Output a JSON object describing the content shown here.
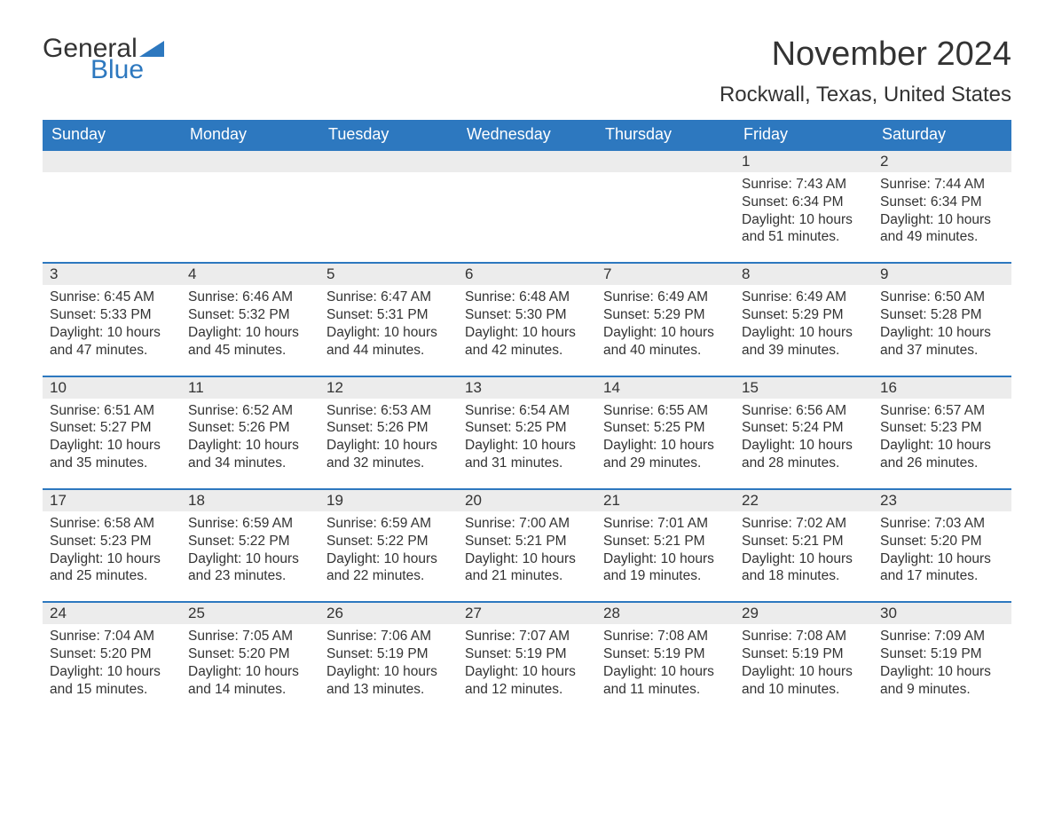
{
  "logo": {
    "text1": "General",
    "text2": "Blue",
    "accent_color": "#2d78bf"
  },
  "title": "November 2024",
  "location": "Rockwall, Texas, United States",
  "colors": {
    "header_bg": "#2d78bf",
    "header_text": "#ffffff",
    "daynum_bg": "#ececec",
    "daynum_border": "#2d78bf",
    "body_bg": "#ffffff",
    "text": "#333333"
  },
  "days_of_week": [
    "Sunday",
    "Monday",
    "Tuesday",
    "Wednesday",
    "Thursday",
    "Friday",
    "Saturday"
  ],
  "weeks": [
    [
      {
        "empty": true
      },
      {
        "empty": true
      },
      {
        "empty": true
      },
      {
        "empty": true
      },
      {
        "empty": true
      },
      {
        "n": "1",
        "sunrise": "Sunrise: 7:43 AM",
        "sunset": "Sunset: 6:34 PM",
        "day1": "Daylight: 10 hours",
        "day2": "and 51 minutes."
      },
      {
        "n": "2",
        "sunrise": "Sunrise: 7:44 AM",
        "sunset": "Sunset: 6:34 PM",
        "day1": "Daylight: 10 hours",
        "day2": "and 49 minutes."
      }
    ],
    [
      {
        "n": "3",
        "sunrise": "Sunrise: 6:45 AM",
        "sunset": "Sunset: 5:33 PM",
        "day1": "Daylight: 10 hours",
        "day2": "and 47 minutes."
      },
      {
        "n": "4",
        "sunrise": "Sunrise: 6:46 AM",
        "sunset": "Sunset: 5:32 PM",
        "day1": "Daylight: 10 hours",
        "day2": "and 45 minutes."
      },
      {
        "n": "5",
        "sunrise": "Sunrise: 6:47 AM",
        "sunset": "Sunset: 5:31 PM",
        "day1": "Daylight: 10 hours",
        "day2": "and 44 minutes."
      },
      {
        "n": "6",
        "sunrise": "Sunrise: 6:48 AM",
        "sunset": "Sunset: 5:30 PM",
        "day1": "Daylight: 10 hours",
        "day2": "and 42 minutes."
      },
      {
        "n": "7",
        "sunrise": "Sunrise: 6:49 AM",
        "sunset": "Sunset: 5:29 PM",
        "day1": "Daylight: 10 hours",
        "day2": "and 40 minutes."
      },
      {
        "n": "8",
        "sunrise": "Sunrise: 6:49 AM",
        "sunset": "Sunset: 5:29 PM",
        "day1": "Daylight: 10 hours",
        "day2": "and 39 minutes."
      },
      {
        "n": "9",
        "sunrise": "Sunrise: 6:50 AM",
        "sunset": "Sunset: 5:28 PM",
        "day1": "Daylight: 10 hours",
        "day2": "and 37 minutes."
      }
    ],
    [
      {
        "n": "10",
        "sunrise": "Sunrise: 6:51 AM",
        "sunset": "Sunset: 5:27 PM",
        "day1": "Daylight: 10 hours",
        "day2": "and 35 minutes."
      },
      {
        "n": "11",
        "sunrise": "Sunrise: 6:52 AM",
        "sunset": "Sunset: 5:26 PM",
        "day1": "Daylight: 10 hours",
        "day2": "and 34 minutes."
      },
      {
        "n": "12",
        "sunrise": "Sunrise: 6:53 AM",
        "sunset": "Sunset: 5:26 PM",
        "day1": "Daylight: 10 hours",
        "day2": "and 32 minutes."
      },
      {
        "n": "13",
        "sunrise": "Sunrise: 6:54 AM",
        "sunset": "Sunset: 5:25 PM",
        "day1": "Daylight: 10 hours",
        "day2": "and 31 minutes."
      },
      {
        "n": "14",
        "sunrise": "Sunrise: 6:55 AM",
        "sunset": "Sunset: 5:25 PM",
        "day1": "Daylight: 10 hours",
        "day2": "and 29 minutes."
      },
      {
        "n": "15",
        "sunrise": "Sunrise: 6:56 AM",
        "sunset": "Sunset: 5:24 PM",
        "day1": "Daylight: 10 hours",
        "day2": "and 28 minutes."
      },
      {
        "n": "16",
        "sunrise": "Sunrise: 6:57 AM",
        "sunset": "Sunset: 5:23 PM",
        "day1": "Daylight: 10 hours",
        "day2": "and 26 minutes."
      }
    ],
    [
      {
        "n": "17",
        "sunrise": "Sunrise: 6:58 AM",
        "sunset": "Sunset: 5:23 PM",
        "day1": "Daylight: 10 hours",
        "day2": "and 25 minutes."
      },
      {
        "n": "18",
        "sunrise": "Sunrise: 6:59 AM",
        "sunset": "Sunset: 5:22 PM",
        "day1": "Daylight: 10 hours",
        "day2": "and 23 minutes."
      },
      {
        "n": "19",
        "sunrise": "Sunrise: 6:59 AM",
        "sunset": "Sunset: 5:22 PM",
        "day1": "Daylight: 10 hours",
        "day2": "and 22 minutes."
      },
      {
        "n": "20",
        "sunrise": "Sunrise: 7:00 AM",
        "sunset": "Sunset: 5:21 PM",
        "day1": "Daylight: 10 hours",
        "day2": "and 21 minutes."
      },
      {
        "n": "21",
        "sunrise": "Sunrise: 7:01 AM",
        "sunset": "Sunset: 5:21 PM",
        "day1": "Daylight: 10 hours",
        "day2": "and 19 minutes."
      },
      {
        "n": "22",
        "sunrise": "Sunrise: 7:02 AM",
        "sunset": "Sunset: 5:21 PM",
        "day1": "Daylight: 10 hours",
        "day2": "and 18 minutes."
      },
      {
        "n": "23",
        "sunrise": "Sunrise: 7:03 AM",
        "sunset": "Sunset: 5:20 PM",
        "day1": "Daylight: 10 hours",
        "day2": "and 17 minutes."
      }
    ],
    [
      {
        "n": "24",
        "sunrise": "Sunrise: 7:04 AM",
        "sunset": "Sunset: 5:20 PM",
        "day1": "Daylight: 10 hours",
        "day2": "and 15 minutes."
      },
      {
        "n": "25",
        "sunrise": "Sunrise: 7:05 AM",
        "sunset": "Sunset: 5:20 PM",
        "day1": "Daylight: 10 hours",
        "day2": "and 14 minutes."
      },
      {
        "n": "26",
        "sunrise": "Sunrise: 7:06 AM",
        "sunset": "Sunset: 5:19 PM",
        "day1": "Daylight: 10 hours",
        "day2": "and 13 minutes."
      },
      {
        "n": "27",
        "sunrise": "Sunrise: 7:07 AM",
        "sunset": "Sunset: 5:19 PM",
        "day1": "Daylight: 10 hours",
        "day2": "and 12 minutes."
      },
      {
        "n": "28",
        "sunrise": "Sunrise: 7:08 AM",
        "sunset": "Sunset: 5:19 PM",
        "day1": "Daylight: 10 hours",
        "day2": "and 11 minutes."
      },
      {
        "n": "29",
        "sunrise": "Sunrise: 7:08 AM",
        "sunset": "Sunset: 5:19 PM",
        "day1": "Daylight: 10 hours",
        "day2": "and 10 minutes."
      },
      {
        "n": "30",
        "sunrise": "Sunrise: 7:09 AM",
        "sunset": "Sunset: 5:19 PM",
        "day1": "Daylight: 10 hours",
        "day2": "and 9 minutes."
      }
    ]
  ]
}
